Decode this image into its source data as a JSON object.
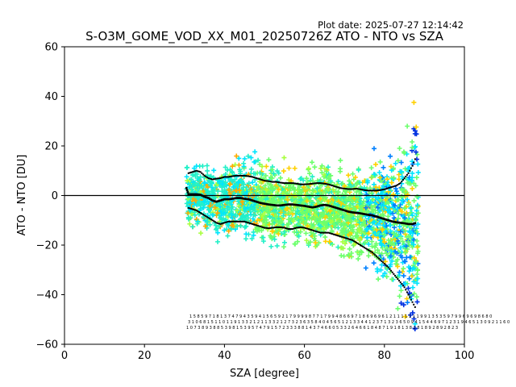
{
  "chart_data": {
    "type": "scatter",
    "title": "S-O3M_GOME_VOD_XX_M01_20250726Z ATO - NTO vs SZA",
    "plot_date": "Plot date: 2025-07-27 12:14:42",
    "xlabel": "SZA [degree]",
    "ylabel": "ATO - NTO [DU]",
    "xlim": [
      0,
      100
    ],
    "ylim": [
      -60,
      60
    ],
    "xticks": [
      "0",
      "20",
      "40",
      "60",
      "80",
      "100"
    ],
    "yticks": [
      "−60",
      "−40",
      "−20",
      "0",
      "20",
      "40",
      "60"
    ],
    "zero_line": 0,
    "grid": false,
    "marker": "+",
    "point_colors": [
      "#00e5ff",
      "#22f0c8",
      "#6cff6c",
      "#a8ff3e",
      "#ffd000",
      "#ffaa00",
      "#0080ff",
      "#0030e0"
    ],
    "mean_curve": {
      "x": [
        30.5,
        31,
        32,
        33,
        34,
        35,
        36,
        37,
        38,
        39,
        40,
        41,
        42,
        43,
        44,
        45,
        46,
        47,
        48,
        49,
        50,
        51,
        52,
        53,
        54,
        55,
        56,
        57,
        58,
        59,
        60,
        61,
        62,
        63,
        64,
        65,
        66,
        67,
        68,
        69,
        70,
        71,
        72,
        73,
        74,
        75,
        76,
        77,
        78,
        79,
        80,
        81,
        82,
        83,
        84,
        85,
        86,
        87,
        88
      ],
      "y": [
        3,
        0.5,
        0.5,
        0.5,
        0.3,
        -0.5,
        -1,
        -2,
        -2.5,
        -2,
        -1.5,
        -1.5,
        -1.3,
        -1,
        -1,
        -1.3,
        -1.5,
        -2,
        -2.5,
        -3,
        -3.3,
        -3.6,
        -3.8,
        -4,
        -4,
        -3.8,
        -3.6,
        -3.6,
        -3.8,
        -4,
        -4.2,
        -4.5,
        -4.8,
        -4.5,
        -4,
        -3.8,
        -4,
        -4.5,
        -5,
        -5.5,
        -6,
        -6.5,
        -6.8,
        -7,
        -7.2,
        -7.5,
        -7.8,
        -8,
        -8.5,
        -9,
        -9.5,
        -10,
        -10.5,
        -10.8,
        -11,
        -11.2,
        -11.5,
        -11.5,
        -11
      ]
    },
    "upper_curve": {
      "x": [
        31,
        32,
        33,
        34,
        35,
        36,
        37,
        38,
        39,
        40,
        41,
        42,
        43,
        44,
        45,
        46,
        47,
        48,
        49,
        50,
        51,
        52,
        53,
        54,
        55,
        56,
        57,
        58,
        59,
        60,
        61,
        62,
        63,
        64,
        65,
        66,
        67,
        68,
        69,
        70,
        71,
        72,
        73,
        74,
        75,
        76,
        77,
        78,
        79,
        80,
        81,
        82,
        83,
        84,
        85,
        86,
        87,
        88
      ],
      "y": [
        9,
        9.5,
        10,
        9.5,
        8,
        7,
        6.5,
        6.8,
        7,
        7.5,
        7.5,
        7.8,
        8,
        8,
        8,
        7.8,
        7.5,
        7,
        6.5,
        6,
        5.8,
        5.5,
        5.5,
        5.2,
        5,
        5,
        5,
        4.8,
        4.5,
        4.5,
        4.6,
        4.8,
        5,
        5,
        4.8,
        4.5,
        4,
        3.5,
        3,
        2.8,
        2.6,
        2.6,
        2.8,
        2.5,
        2.2,
        2,
        2,
        2,
        2.2,
        2.5,
        3,
        3.5,
        4,
        5,
        7,
        9,
        12,
        16
      ]
    },
    "lower_curve": {
      "x": [
        31,
        32,
        33,
        34,
        35,
        36,
        37,
        38,
        39,
        40,
        41,
        42,
        43,
        44,
        45,
        46,
        47,
        48,
        49,
        50,
        51,
        52,
        53,
        54,
        55,
        56,
        57,
        58,
        59,
        60,
        61,
        62,
        63,
        64,
        65,
        66,
        67,
        68,
        69,
        70,
        71,
        72,
        73,
        74,
        75,
        76,
        77,
        78,
        79,
        80,
        81,
        82,
        83,
        84,
        85,
        86,
        87,
        88
      ],
      "y": [
        -5,
        -5.5,
        -6,
        -7,
        -8,
        -9,
        -10,
        -11,
        -11.5,
        -11,
        -10.5,
        -10.5,
        -10.5,
        -10.5,
        -10.5,
        -11,
        -11.5,
        -12,
        -12.5,
        -13,
        -13.2,
        -13,
        -12.8,
        -12.8,
        -13,
        -13.5,
        -13.5,
        -13,
        -12.8,
        -13,
        -13.5,
        -14,
        -14.5,
        -15,
        -15,
        -15,
        -15.5,
        -16,
        -16.5,
        -17,
        -17.5,
        -18,
        -19,
        -20,
        -21,
        -22,
        -23,
        -24.5,
        -26,
        -27.5,
        -29,
        -31,
        -33,
        -35,
        -37,
        -40,
        -43,
        -46
      ]
    },
    "bin_counts": {
      "row1": "1 5 8 5 9 7 1 8 1 3 7 4 7 9 4 3 5 9 4 1 5 6 5 9 2 1 7 9 9 9 9 8 7 7 1 7 9 9 4 8 6 6 9 7 1 8 6 9 6 9 6 1 2 1 1 1 1 1 1 1 9 9 1 3 5 3 5 9 7 9 9 6 9 6 9 8 6 8 0",
      "row2": "3 1 0 6 8 1 5 1 1 0 1 1 9 1 3 3 2 1 2 1 1 3 3 2 1 2 7 3 2 3 6 3 5 8 4 0 4 5 6 5 1 2 1 3 3 4 4 1 2 3 7 1 3 2 3 6 5 0 9 4 1 5 4 4 6 9 7 1 2 3 1 9 4 6 5 1 3 0 9 2 1 1 6 0",
      "row3": "1 0 7 3 8 9 3 8 8 5 3 9 8 1 5 3 9 5 7 4 7 9 1 5 7 2 3 3 3 8 8 1 4 3 7 4 6 6 0 5 3 3 2 6 4 6 6 1 8 4 8 7 1 9 1 8 1 3 8 2 8 1 8 9 2 8 9 2 8 2 3"
    }
  }
}
